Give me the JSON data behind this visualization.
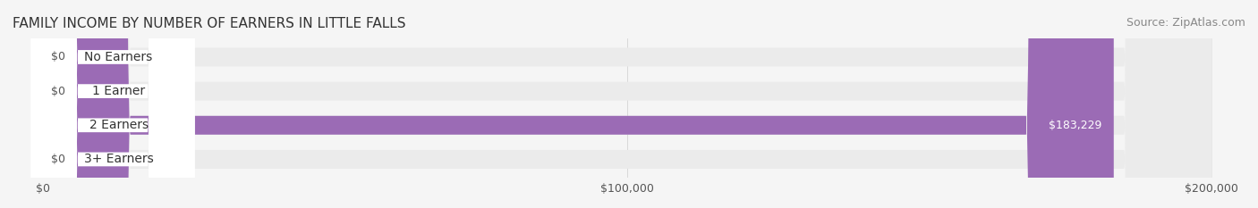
{
  "title": "FAMILY INCOME BY NUMBER OF EARNERS IN LITTLE FALLS",
  "source": "Source: ZipAtlas.com",
  "categories": [
    "No Earners",
    "1 Earner",
    "2 Earners",
    "3+ Earners"
  ],
  "values": [
    0,
    0,
    183229,
    0
  ],
  "bar_colors": [
    "#f08080",
    "#a0b4e0",
    "#9b6bb5",
    "#5ec8c8"
  ],
  "label_bg_colors": [
    "#f7c4c4",
    "#c8d4f0",
    "#c0a0d8",
    "#a0e0e0"
  ],
  "max_value": 200000,
  "xticks": [
    0,
    100000,
    200000
  ],
  "xtick_labels": [
    "$0",
    "$100,000",
    "$200,000"
  ],
  "bar_height": 0.55,
  "background_color": "#f5f5f5",
  "bar_background_color": "#ebebeb",
  "title_fontsize": 11,
  "source_fontsize": 9,
  "label_fontsize": 10,
  "value_fontsize": 9
}
